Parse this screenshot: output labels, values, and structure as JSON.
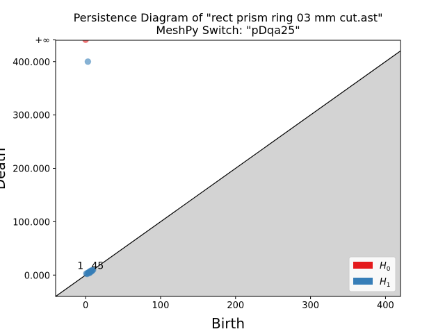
{
  "chart_data": {
    "type": "scatter",
    "title": "Persistence Diagram of \"rect prism ring 03 mm cut.ast\"",
    "subtitle": "MeshPy Switch: \"pDqa25\"",
    "xlabel": "Birth",
    "ylabel": "Death",
    "xlim": [
      -40,
      420
    ],
    "ylim": [
      -40,
      440
    ],
    "x_ticks": [
      0,
      100,
      200,
      300,
      400
    ],
    "y_ticks": [
      0,
      100,
      200,
      300,
      400
    ],
    "y_tick_labels": [
      "0.000",
      "100.000",
      "200.000",
      "300.000",
      "400.000"
    ],
    "infinity_label": "+∞",
    "infinity_value": 441,
    "diagonal": true,
    "legend_position": "lower-right",
    "annotations": [
      {
        "text": "1",
        "x": 0,
        "y": 6
      },
      {
        "text": "45",
        "x": 5,
        "y": 6
      }
    ],
    "series": [
      {
        "name": "H0",
        "color": "#e41a1c",
        "points": [
          [
            0,
            "inf"
          ]
        ]
      },
      {
        "name": "H1",
        "color": "#377eb8",
        "points": [
          [
            3,
            400
          ],
          [
            1,
            3
          ],
          [
            2,
            2
          ],
          [
            3,
            4
          ],
          [
            4,
            5
          ],
          [
            5,
            6
          ],
          [
            6,
            7
          ],
          [
            7,
            8
          ],
          [
            8,
            8
          ],
          [
            9,
            9
          ],
          [
            10,
            10
          ],
          [
            6,
            5
          ],
          [
            5,
            4
          ],
          [
            8,
            7
          ]
        ]
      }
    ],
    "legend": [
      {
        "label": "H",
        "sub": "0",
        "color": "#e41a1c"
      },
      {
        "label": "H",
        "sub": "1",
        "color": "#377eb8"
      }
    ]
  }
}
